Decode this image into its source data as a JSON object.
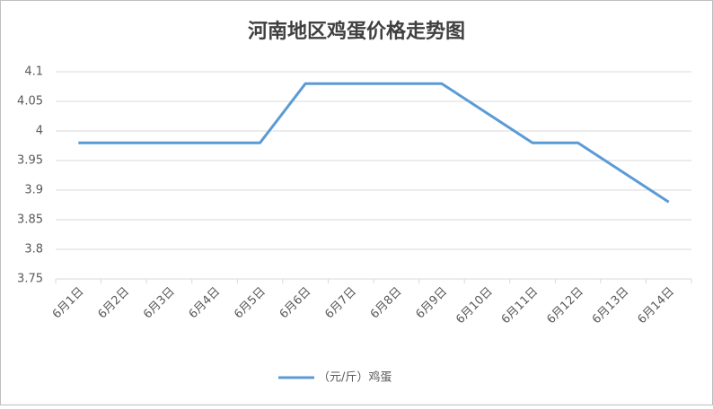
{
  "chart_data": {
    "type": "line",
    "title": "河南地区鸡蛋价格走势图",
    "categories": [
      "6月1日",
      "6月2日",
      "6月3日",
      "6月4日",
      "6月5日",
      "6月6日",
      "6月7日",
      "6月8日",
      "6月9日",
      "6月10日",
      "6月11日",
      "6月12日",
      "6月13日",
      "6月14日"
    ],
    "series": [
      {
        "name": "（元/斤）鸡蛋",
        "color": "#5b9bd5",
        "values": [
          3.98,
          3.98,
          3.98,
          3.98,
          3.98,
          4.08,
          4.08,
          4.08,
          4.08,
          4.03,
          3.98,
          3.98,
          3.93,
          3.88
        ]
      }
    ],
    "ylim": [
      3.75,
      4.1
    ],
    "yticks": [
      3.75,
      3.8,
      3.85,
      3.9,
      3.95,
      4,
      4.05,
      4.1
    ],
    "grid": true,
    "legend": "bottom"
  }
}
